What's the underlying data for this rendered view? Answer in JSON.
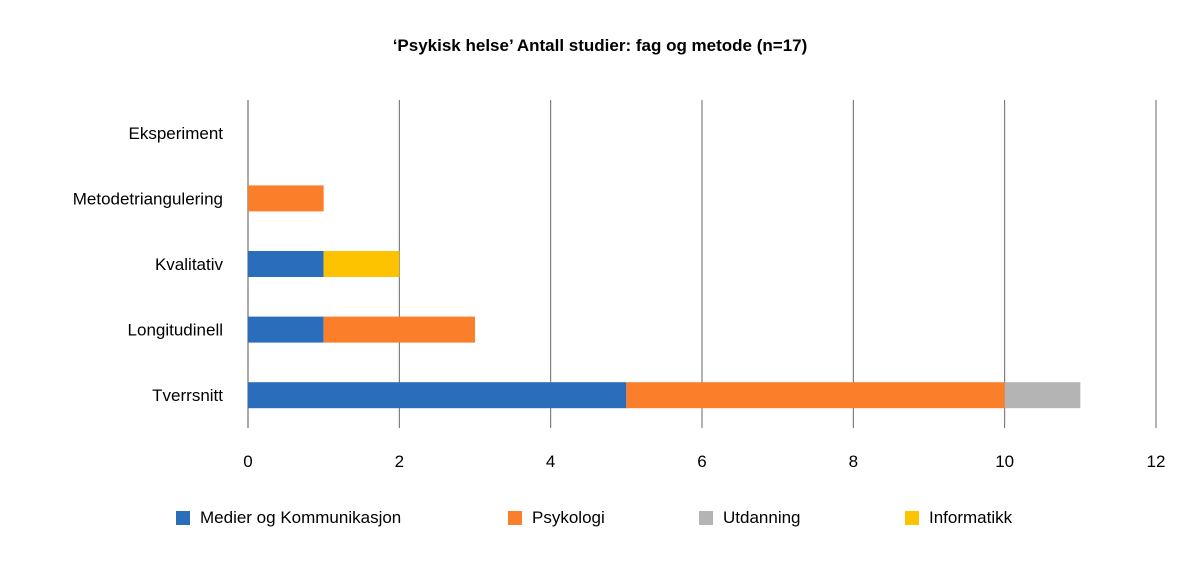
{
  "chart_data": {
    "type": "bar",
    "orientation": "horizontal",
    "stacked": true,
    "title": "‘Psykisk helse’ Antall studier: fag og metode (n=17)",
    "xlabel": "",
    "ylabel": "",
    "categories": [
      "Tverrsnitt",
      "Longitudinell",
      "Kvalitativ",
      "Metodetriangulering",
      "Eksperiment"
    ],
    "series": [
      {
        "name": "Medier og Kommunikasjon",
        "color": "#2a6ebb",
        "values": [
          5,
          1,
          1,
          0,
          0
        ]
      },
      {
        "name": "Psykologi",
        "color": "#fb7f2b",
        "values": [
          5,
          2,
          0,
          1,
          0
        ]
      },
      {
        "name": "Utdanning",
        "color": "#b4b4b4",
        "values": [
          1,
          0,
          0,
          0,
          0
        ]
      },
      {
        "name": "Informatikk",
        "color": "#fdc300",
        "values": [
          0,
          0,
          1,
          0,
          0
        ]
      }
    ],
    "xlim": [
      0,
      12
    ],
    "xticks": [
      "0",
      "2",
      "4",
      "6",
      "8",
      "10",
      "12"
    ],
    "grid": "vertical",
    "legend_position": "bottom"
  }
}
